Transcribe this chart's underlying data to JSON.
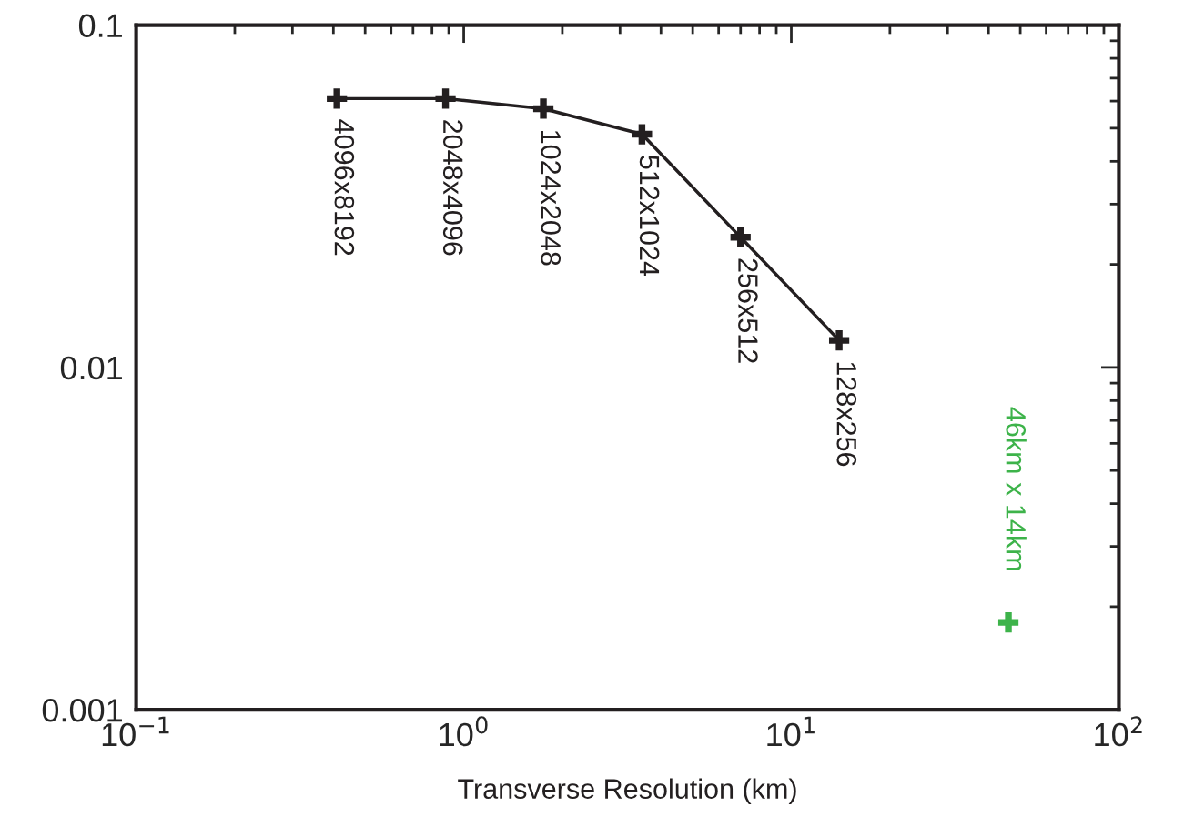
{
  "chart_data": {
    "type": "line",
    "xlabel": "Transverse Resolution (km)",
    "log": "xy",
    "xlim": [
      0.1,
      100
    ],
    "ylim": [
      0.001,
      0.1
    ],
    "xticks": [
      {
        "value": 0.1,
        "label": "10$^{−1}$"
      },
      {
        "value": 1,
        "label": "10$^{0}$"
      },
      {
        "value": 10,
        "label": "10$^{1}$"
      },
      {
        "value": 100,
        "label": "10$^{2}$"
      }
    ],
    "yticks": [
      {
        "value": 0.001,
        "label": "0.001"
      },
      {
        "value": 0.01,
        "label": "0.01"
      },
      {
        "value": 0.1,
        "label": "0.1"
      }
    ],
    "grid": false,
    "legend": false,
    "marker": "cross",
    "series": [
      {
        "line_style": "solid",
        "color": "#231f20",
        "x": [
          0.41,
          0.88,
          1.75,
          3.5,
          7.0,
          14.0
        ],
        "values": [
          0.061,
          0.061,
          0.057,
          0.048,
          0.024,
          0.012
        ]
      },
      {
        "type": "scatter",
        "color": "#3db34a",
        "x": [
          46
        ],
        "values": [
          0.0018
        ]
      }
    ],
    "annotations": [
      {
        "text": "4096x8192",
        "x": 0.41,
        "y": 0.061
      },
      {
        "text": "2048x4096",
        "x": 0.88,
        "y": 0.061
      },
      {
        "text": "1024x2048",
        "x": 1.75,
        "y": 0.057
      },
      {
        "text": "512x1024",
        "x": 3.5,
        "y": 0.048
      },
      {
        "text": "256x512",
        "x": 7.0,
        "y": 0.024
      },
      {
        "text": "128x256",
        "x": 14.0,
        "y": 0.012
      },
      {
        "text": "46km x 14km",
        "x": 46,
        "y": 0.0018
      }
    ]
  }
}
